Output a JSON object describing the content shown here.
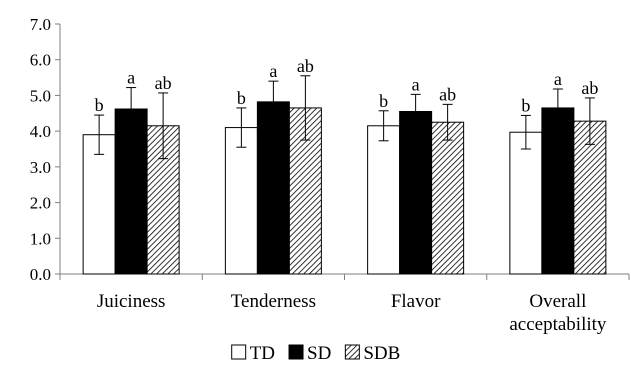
{
  "chart_data": {
    "type": "bar",
    "categories": [
      "Juiciness",
      "Tenderness",
      "Flavor",
      "Overall\nacceptability"
    ],
    "series": [
      {
        "name": "TD",
        "fill": "#ffffff",
        "values": [
          3.9,
          4.1,
          4.15,
          3.97
        ],
        "errors": [
          0.55,
          0.55,
          0.42,
          0.47
        ],
        "letters": [
          "b",
          "b",
          "b",
          "b"
        ]
      },
      {
        "name": "SD",
        "fill": "#000000",
        "values": [
          4.62,
          4.82,
          4.55,
          4.65
        ],
        "errors": [
          0.6,
          0.58,
          0.48,
          0.53
        ],
        "letters": [
          "a",
          "a",
          "a",
          "a"
        ]
      },
      {
        "name": "SDB",
        "fill": "hatch",
        "values": [
          4.15,
          4.65,
          4.25,
          4.28
        ],
        "errors": [
          0.92,
          0.9,
          0.5,
          0.65
        ],
        "letters": [
          "ab",
          "ab",
          "ab",
          "ab"
        ]
      }
    ],
    "ylim": [
      0,
      7
    ],
    "yticks": [
      "0.0",
      "1.0",
      "2.0",
      "3.0",
      "4.0",
      "5.0",
      "6.0",
      "7.0"
    ],
    "xlabel": "",
    "ylabel": "",
    "legend_position": "bottom-center",
    "grid": false
  }
}
